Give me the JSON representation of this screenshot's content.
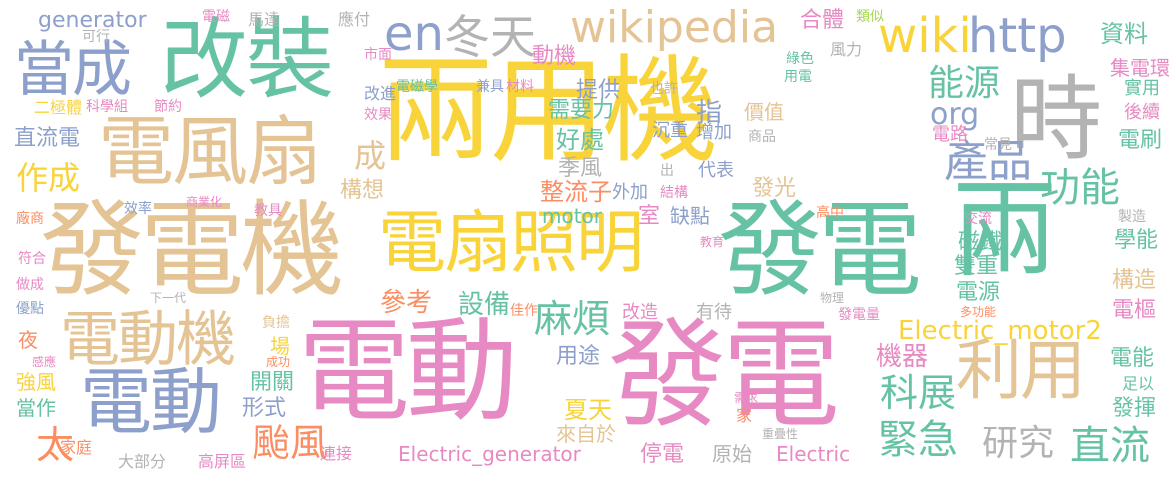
{
  "palette": {
    "yellow": "#f9d33a",
    "green": "#66c2a5",
    "tan": "#e4c494",
    "blue": "#8da0cb",
    "pink": "#e78ac3",
    "orange": "#fc8d62",
    "lime": "#a6d854",
    "gray": "#b3b3b3"
  },
  "words": [
    {
      "text": "兩用機",
      "color": "yellow"
    },
    {
      "text": "電動",
      "color": "pink"
    },
    {
      "text": "發電",
      "color": "pink"
    },
    {
      "text": "發電機",
      "color": "tan"
    },
    {
      "text": "發電",
      "color": "green"
    },
    {
      "text": "改裝",
      "color": "green"
    },
    {
      "text": "兩",
      "color": "green"
    },
    {
      "text": "電風扇",
      "color": "tan"
    },
    {
      "text": "時",
      "color": "gray"
    },
    {
      "text": "電扇照明",
      "color": "yellow"
    },
    {
      "text": "當成",
      "color": "blue"
    },
    {
      "text": "電動",
      "color": "blue"
    },
    {
      "text": "電動機",
      "color": "tan"
    },
    {
      "text": "利用",
      "color": "tan"
    },
    {
      "text": "wikipedia",
      "color": "tan"
    },
    {
      "text": "en",
      "color": "blue"
    },
    {
      "text": "冬天",
      "color": "gray"
    },
    {
      "text": "wiki",
      "color": "yellow"
    },
    {
      "text": "http",
      "color": "blue"
    },
    {
      "text": "產品",
      "color": "blue"
    },
    {
      "text": "能源",
      "color": "green"
    },
    {
      "text": "org",
      "color": "blue"
    },
    {
      "text": "功能",
      "color": "green"
    },
    {
      "text": "緊急",
      "color": "green"
    },
    {
      "text": "研究",
      "color": "gray"
    },
    {
      "text": "直流",
      "color": "green"
    },
    {
      "text": "科展",
      "color": "green"
    },
    {
      "text": "颱風",
      "color": "orange"
    },
    {
      "text": "麻煩",
      "color": "green"
    },
    {
      "text": "作成",
      "color": "yellow"
    },
    {
      "text": "成",
      "color": "tan"
    },
    {
      "text": "太",
      "color": "orange"
    },
    {
      "text": "Electric_motor2",
      "color": "yellow"
    },
    {
      "text": "Electric_generator",
      "color": "pink"
    },
    {
      "text": "generator",
      "color": "blue"
    },
    {
      "text": "動機",
      "color": "pink"
    },
    {
      "text": "資料",
      "color": "green"
    },
    {
      "text": "參考",
      "color": "orange"
    },
    {
      "text": "設備",
      "color": "green"
    },
    {
      "text": "需要力",
      "color": "green"
    },
    {
      "text": "提供",
      "color": "blue"
    },
    {
      "text": "好處",
      "color": "green"
    },
    {
      "text": "整流子",
      "color": "orange"
    },
    {
      "text": "季風",
      "color": "gray"
    },
    {
      "text": "構想",
      "color": "tan"
    },
    {
      "text": "直流電",
      "color": "blue"
    },
    {
      "text": "用途",
      "color": "blue"
    },
    {
      "text": "夏天",
      "color": "yellow"
    },
    {
      "text": "來自於",
      "color": "tan"
    },
    {
      "text": "原始",
      "color": "gray"
    },
    {
      "text": "機器",
      "color": "pink"
    },
    {
      "text": "雙重",
      "color": "green"
    },
    {
      "text": "磁鐵",
      "color": "green"
    },
    {
      "text": "電能",
      "color": "green"
    },
    {
      "text": "電刷",
      "color": "green"
    },
    {
      "text": "學能",
      "color": "green"
    },
    {
      "text": "構造",
      "color": "tan"
    },
    {
      "text": "發揮",
      "color": "green"
    },
    {
      "text": "形式",
      "color": "blue"
    },
    {
      "text": "開關",
      "color": "green"
    },
    {
      "text": "停電",
      "color": "pink"
    },
    {
      "text": "Electric",
      "color": "pink"
    },
    {
      "text": "motor",
      "color": "green"
    },
    {
      "text": "室",
      "color": "pink"
    },
    {
      "text": "缺點",
      "color": "blue"
    },
    {
      "text": "外加",
      "color": "blue"
    },
    {
      "text": "發光",
      "color": "tan"
    },
    {
      "text": "代表",
      "color": "blue"
    },
    {
      "text": "指",
      "color": "blue"
    },
    {
      "text": "增加",
      "color": "blue"
    },
    {
      "text": "沉重",
      "color": "blue"
    },
    {
      "text": "價值",
      "color": "tan"
    },
    {
      "text": "電路",
      "color": "pink"
    },
    {
      "text": "集電環",
      "color": "pink"
    },
    {
      "text": "實用",
      "color": "green"
    },
    {
      "text": "後續",
      "color": "pink"
    },
    {
      "text": "電樞",
      "color": "pink"
    },
    {
      "text": "電源",
      "color": "green"
    },
    {
      "text": "強風",
      "color": "yellow"
    },
    {
      "text": "當作",
      "color": "green"
    },
    {
      "text": "夜",
      "color": "orange"
    },
    {
      "text": "場",
      "color": "yellow"
    },
    {
      "text": "改造",
      "color": "pink"
    },
    {
      "text": "有待",
      "color": "gray"
    },
    {
      "text": "連接",
      "color": "pink"
    },
    {
      "text": "高屏區",
      "color": "pink"
    },
    {
      "text": "大部分",
      "color": "gray"
    },
    {
      "text": "家庭",
      "color": "orange"
    },
    {
      "text": "馬達",
      "color": "gray"
    },
    {
      "text": "應付",
      "color": "gray"
    },
    {
      "text": "電磁",
      "color": "pink"
    },
    {
      "text": "可行",
      "color": "gray"
    },
    {
      "text": "合體",
      "color": "pink"
    },
    {
      "text": "類似",
      "color": "lime"
    },
    {
      "text": "風力",
      "color": "gray"
    },
    {
      "text": "市面",
      "color": "pink"
    },
    {
      "text": "綠色",
      "color": "green"
    },
    {
      "text": "用電",
      "color": "green"
    },
    {
      "text": "也許",
      "color": "gray"
    },
    {
      "text": "電磁學",
      "color": "green"
    },
    {
      "text": "兼具",
      "color": "blue"
    },
    {
      "text": "材料",
      "color": "pink"
    },
    {
      "text": "二極體",
      "color": "yellow"
    },
    {
      "text": "科學組",
      "color": "pink"
    },
    {
      "text": "節約",
      "color": "pink"
    },
    {
      "text": "改進",
      "color": "blue"
    },
    {
      "text": "效果",
      "color": "pink"
    },
    {
      "text": "商品",
      "color": "gray"
    },
    {
      "text": "常見",
      "color": "gray"
    },
    {
      "text": "出",
      "color": "gray"
    },
    {
      "text": "結構",
      "color": "pink"
    },
    {
      "text": "效率",
      "color": "blue"
    },
    {
      "text": "商業化",
      "color": "pink"
    },
    {
      "text": "教具",
      "color": "pink"
    },
    {
      "text": "廠商",
      "color": "orange"
    },
    {
      "text": "符合",
      "color": "pink"
    },
    {
      "text": "做成",
      "color": "pink"
    },
    {
      "text": "優點",
      "color": "blue"
    },
    {
      "text": "下一代",
      "color": "gray"
    },
    {
      "text": "佳作",
      "color": "orange"
    },
    {
      "text": "教育",
      "color": "pink"
    },
    {
      "text": "高中",
      "color": "orange"
    },
    {
      "text": "交流",
      "color": "pink"
    },
    {
      "text": "製造",
      "color": "gray"
    },
    {
      "text": "物理",
      "color": "gray"
    },
    {
      "text": "發電量",
      "color": "pink"
    },
    {
      "text": "多功能",
      "color": "orange"
    },
    {
      "text": "負擔",
      "color": "tan"
    },
    {
      "text": "成功",
      "color": "orange"
    },
    {
      "text": "感應",
      "color": "pink"
    },
    {
      "text": "需求",
      "color": "pink"
    },
    {
      "text": "家",
      "color": "orange"
    },
    {
      "text": "重疊性",
      "color": "gray"
    },
    {
      "text": "足以",
      "color": "green"
    }
  ]
}
